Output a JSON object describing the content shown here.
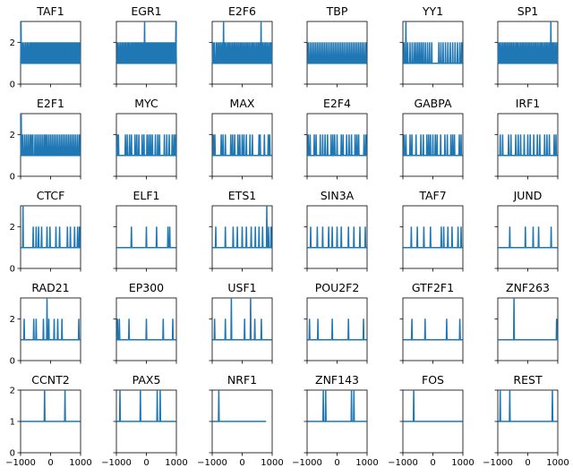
{
  "figure": {
    "line_color": "#1f77b4",
    "axis_color": "#000000",
    "background": "#ffffff",
    "layout": "5 rows x 6 columns of small line plots, shared x axis, shared y axis per row"
  },
  "chart_data": [
    {
      "type": "line",
      "title": "TAF1",
      "xlim": [
        -1000,
        1000
      ],
      "ylim": [
        0,
        3
      ],
      "baseline": 1,
      "pattern": "dense",
      "x": [
        -985,
        -930,
        -880,
        -830,
        -780,
        -730,
        -680,
        -640,
        -600,
        -555,
        -510,
        -470,
        -430,
        -390,
        -350,
        -310,
        -270,
        -230,
        -190,
        -150,
        -110,
        -70,
        -30,
        10,
        50,
        90,
        130,
        170,
        210,
        250,
        290,
        330,
        370,
        410,
        450,
        490,
        530,
        570,
        610,
        650,
        690,
        730,
        770,
        810,
        850,
        890,
        930,
        970
      ],
      "y": [
        3,
        2,
        2,
        2,
        2,
        2,
        2,
        2,
        2,
        2,
        2,
        2,
        2,
        2,
        2,
        2,
        2,
        2,
        2,
        2,
        2,
        2,
        2,
        2,
        2,
        2,
        2,
        2,
        2,
        2,
        2,
        2,
        2,
        2,
        2,
        2,
        2,
        2,
        2,
        2,
        2,
        2,
        2,
        2,
        2,
        2,
        2,
        2
      ]
    },
    {
      "type": "line",
      "title": "EGR1",
      "xlim": [
        -1000,
        1000
      ],
      "ylim": [
        0,
        3
      ],
      "baseline": 1,
      "pattern": "dense",
      "x": [
        -960,
        -910,
        -860,
        -810,
        -770,
        -720,
        -680,
        -630,
        -590,
        -550,
        -500,
        -460,
        -420,
        -380,
        -340,
        -300,
        -260,
        -220,
        -180,
        -140,
        -100,
        -60,
        -20,
        20,
        60,
        100,
        140,
        180,
        220,
        260,
        300,
        340,
        380,
        420,
        460,
        500,
        540,
        580,
        620,
        660,
        700,
        740,
        780,
        820,
        860,
        900,
        940,
        985
      ],
      "y": [
        2,
        2,
        2,
        2,
        2,
        2,
        2,
        2,
        2,
        2,
        2,
        2,
        2,
        2,
        2,
        2,
        2,
        2,
        2,
        2,
        2,
        3,
        2,
        2,
        2,
        2,
        2,
        2,
        2,
        2,
        2,
        2,
        2,
        2,
        2,
        2,
        2,
        2,
        2,
        2,
        2,
        2,
        2,
        2,
        2,
        2,
        2,
        3
      ]
    },
    {
      "type": "line",
      "title": "E2F6",
      "xlim": [
        -1000,
        1000
      ],
      "ylim": [
        0,
        3
      ],
      "baseline": 1,
      "pattern": "dense",
      "x": [
        -980,
        -930,
        -870,
        -820,
        -770,
        -720,
        -670,
        -620,
        -570,
        -520,
        -470,
        -420,
        -370,
        -320,
        -270,
        -220,
        -170,
        -120,
        -70,
        -20,
        30,
        80,
        130,
        180,
        230,
        280,
        330,
        380,
        430,
        480,
        530,
        580,
        630,
        680,
        730,
        780,
        830,
        880,
        930,
        975
      ],
      "y": [
        2,
        2,
        2,
        2,
        2,
        2,
        2,
        3,
        2,
        2,
        2,
        2,
        2,
        2,
        2,
        2,
        2,
        2,
        2,
        2,
        2,
        2,
        2,
        2,
        2,
        2,
        2,
        2,
        2,
        2,
        2,
        2,
        3,
        2,
        2,
        2,
        2,
        2,
        2,
        2
      ]
    },
    {
      "type": "line",
      "title": "TBP",
      "xlim": [
        -1000,
        1000
      ],
      "ylim": [
        0,
        3
      ],
      "baseline": 1,
      "pattern": "dense",
      "x": [
        -960,
        -900,
        -840,
        -780,
        -720,
        -660,
        -600,
        -540,
        -480,
        -420,
        -360,
        -300,
        -240,
        -180,
        -120,
        -60,
        0,
        60,
        120,
        180,
        240,
        300,
        360,
        420,
        480,
        540,
        600,
        660,
        720,
        780,
        840,
        900,
        960
      ],
      "y": [
        2,
        2,
        2,
        2,
        2,
        2,
        2,
        2,
        2,
        2,
        2,
        2,
        2,
        2,
        2,
        2,
        2,
        2,
        2,
        2,
        2,
        2,
        2,
        2,
        2,
        2,
        2,
        2,
        2,
        2,
        2,
        2,
        2
      ]
    },
    {
      "type": "line",
      "title": "YY1",
      "xlim": [
        -1000,
        1000
      ],
      "ylim": [
        0,
        3
      ],
      "baseline": 1,
      "pattern": "sparse",
      "x": [
        -960,
        -900,
        -840,
        -760,
        -690,
        -620,
        -560,
        -500,
        -440,
        -380,
        -320,
        -250,
        -180,
        -110,
        -40,
        200,
        270,
        340,
        420,
        500,
        580,
        660,
        740,
        820,
        900,
        960
      ],
      "y": [
        2,
        3,
        2,
        2,
        2,
        2,
        2,
        2,
        2,
        2,
        2,
        2,
        2,
        2,
        2,
        2,
        2,
        2,
        2,
        2,
        2,
        2,
        2,
        2,
        2,
        2
      ]
    },
    {
      "type": "line",
      "title": "SP1",
      "xlim": [
        -1000,
        1000
      ],
      "ylim": [
        0,
        3
      ],
      "baseline": 1,
      "pattern": "dense",
      "x": [
        -980,
        -930,
        -880,
        -830,
        -780,
        -730,
        -680,
        -630,
        -580,
        -530,
        -480,
        -430,
        -380,
        -330,
        -280,
        -230,
        -180,
        -130,
        -80,
        -30,
        20,
        70,
        120,
        170,
        220,
        270,
        320,
        370,
        420,
        470,
        520,
        570,
        620,
        670,
        720,
        770,
        820,
        870,
        920,
        970
      ],
      "y": [
        2,
        2,
        2,
        2,
        2,
        2,
        2,
        2,
        2,
        2,
        2,
        2,
        2,
        2,
        2,
        2,
        2,
        2,
        2,
        2,
        2,
        2,
        2,
        2,
        2,
        2,
        2,
        2,
        2,
        2,
        2,
        2,
        2,
        2,
        2,
        3,
        2,
        2,
        2,
        2
      ]
    },
    {
      "type": "line",
      "title": "E2F1",
      "xlim": [
        -1000,
        1000
      ],
      "ylim": [
        0,
        3
      ],
      "baseline": 1,
      "x": [
        -980,
        -930,
        -870,
        -810,
        -750,
        -690,
        -640,
        -590,
        -520,
        -460,
        -400,
        -340,
        -280,
        -220,
        -170,
        -120,
        -60,
        0,
        60,
        120,
        180,
        240,
        300,
        360,
        420,
        480,
        540,
        600,
        660,
        720,
        780,
        840,
        900,
        960
      ],
      "y": [
        3,
        2,
        2,
        2,
        2,
        2,
        2,
        2,
        2,
        2,
        2,
        2,
        2,
        2,
        2,
        2,
        2,
        2,
        2,
        2,
        2,
        2,
        2,
        2,
        2,
        2,
        2,
        2,
        2,
        2,
        2,
        2,
        2,
        2
      ]
    },
    {
      "type": "line",
      "title": "MYC",
      "xlim": [
        -1000,
        1000
      ],
      "ylim": [
        0,
        3
      ],
      "baseline": 1,
      "x": [
        -970,
        -930,
        -700,
        -640,
        -560,
        -500,
        -380,
        -320,
        -250,
        -140,
        -80,
        20,
        80,
        140,
        200,
        300,
        380,
        440,
        600,
        680,
        760,
        860,
        920,
        970
      ],
      "y": [
        2,
        2,
        2,
        2,
        2,
        2,
        2,
        2,
        2,
        2,
        2,
        2,
        2,
        2,
        2,
        2,
        2,
        2,
        2,
        2,
        2,
        2,
        2,
        2
      ]
    },
    {
      "type": "line",
      "title": "MAX",
      "xlim": [
        -1000,
        1000
      ],
      "ylim": [
        0,
        3
      ],
      "baseline": 1,
      "x": [
        -960,
        -910,
        -700,
        -640,
        -560,
        -380,
        -320,
        -250,
        -140,
        -80,
        0,
        60,
        140,
        260,
        340,
        560,
        600,
        740,
        870,
        920
      ],
      "y": [
        2,
        2,
        2,
        2,
        2,
        2,
        2,
        2,
        2,
        2,
        2,
        2,
        2,
        2,
        2,
        2,
        2,
        2,
        2,
        2
      ]
    },
    {
      "type": "line",
      "title": "E2F4",
      "xlim": [
        -1000,
        1000
      ],
      "ylim": [
        0,
        3
      ],
      "baseline": 1,
      "x": [
        -960,
        -900,
        -760,
        -700,
        -560,
        -480,
        -400,
        -320,
        -200,
        -140,
        -80,
        0,
        140,
        200,
        320,
        400,
        480,
        600,
        660,
        720,
        900,
        960
      ],
      "y": [
        2,
        2,
        2,
        2,
        2,
        2,
        2,
        2,
        2,
        2,
        2,
        2,
        2,
        2,
        2,
        2,
        2,
        2,
        2,
        2,
        2,
        2
      ]
    },
    {
      "type": "line",
      "title": "GABPA",
      "xlim": [
        -1000,
        1000
      ],
      "ylim": [
        0,
        3
      ],
      "baseline": 1,
      "x": [
        -960,
        -900,
        -760,
        -700,
        -560,
        -400,
        -320,
        -200,
        -140,
        -80,
        0,
        80,
        140,
        260,
        400,
        480,
        600,
        660,
        720,
        880,
        940
      ],
      "y": [
        2,
        2,
        2,
        2,
        2,
        2,
        2,
        2,
        2,
        2,
        2,
        2,
        2,
        2,
        2,
        2,
        2,
        2,
        2,
        2,
        2
      ]
    },
    {
      "type": "line",
      "title": "IRF1",
      "xlim": [
        -1000,
        1000
      ],
      "ylim": [
        0,
        3
      ],
      "baseline": 1,
      "x": [
        -920,
        -840,
        -640,
        -560,
        -400,
        -320,
        -240,
        -120,
        0,
        80,
        200,
        320,
        400,
        560,
        640,
        720,
        880,
        940
      ],
      "y": [
        2,
        2,
        2,
        2,
        2,
        2,
        2,
        2,
        2,
        2,
        2,
        2,
        2,
        2,
        2,
        2,
        2,
        2
      ]
    },
    {
      "type": "line",
      "title": "CTCF",
      "xlim": [
        -1000,
        1000
      ],
      "ylim": [
        0,
        3
      ],
      "baseline": 1,
      "x": [
        -920,
        -580,
        -480,
        -400,
        -300,
        -120,
        -20,
        180,
        300,
        560,
        660,
        800,
        900,
        960
      ],
      "y": [
        3,
        2,
        2,
        2,
        2,
        2,
        2,
        2,
        2,
        2,
        2,
        2,
        2,
        2
      ]
    },
    {
      "type": "line",
      "title": "ELF1",
      "xlim": [
        -1000,
        1000
      ],
      "ylim": [
        0,
        3
      ],
      "baseline": 1,
      "x": [
        -500,
        0,
        340,
        720,
        780
      ],
      "y": [
        2,
        2,
        2,
        2,
        2
      ]
    },
    {
      "type": "line",
      "title": "ETS1",
      "xlim": [
        -1000,
        1000
      ],
      "ylim": [
        0,
        3
      ],
      "baseline": 1,
      "x": [
        -880,
        -560,
        -300,
        -160,
        0,
        140,
        300,
        440,
        560,
        680,
        820,
        880,
        960
      ],
      "y": [
        2,
        2,
        2,
        2,
        2,
        2,
        2,
        2,
        2,
        2,
        3,
        2,
        2
      ]
    },
    {
      "type": "line",
      "title": "SIN3A",
      "xlim": [
        -1000,
        1000
      ],
      "ylim": [
        0,
        3
      ],
      "baseline": 1,
      "x": [
        -880,
        -660,
        -480,
        -280,
        -160,
        0,
        140,
        380,
        560,
        760,
        940
      ],
      "y": [
        2,
        2,
        2,
        2,
        2,
        2,
        2,
        2,
        2,
        2,
        2
      ]
    },
    {
      "type": "line",
      "title": "TAF7",
      "xlim": [
        -1000,
        1000
      ],
      "ylim": [
        0,
        3
      ],
      "baseline": 1,
      "x": [
        -720,
        -520,
        -300,
        -80,
        280,
        360,
        500,
        640,
        840,
        940
      ],
      "y": [
        2,
        2,
        2,
        2,
        2,
        2,
        2,
        2,
        2,
        2
      ]
    },
    {
      "type": "line",
      "title": "JUND",
      "xlim": [
        -1000,
        1000
      ],
      "ylim": [
        0,
        3
      ],
      "baseline": 1,
      "x": [
        -600,
        -80,
        180,
        360,
        780
      ],
      "y": [
        2,
        2,
        2,
        2,
        2
      ]
    },
    {
      "type": "line",
      "title": "RAD21",
      "xlim": [
        -1000,
        1000
      ],
      "ylim": [
        0,
        3
      ],
      "baseline": 1,
      "x": [
        -880,
        -560,
        -480,
        -240,
        -120,
        -60,
        120,
        240,
        380,
        940
      ],
      "y": [
        2,
        2,
        2,
        2,
        3,
        2,
        2,
        2,
        2,
        2
      ]
    },
    {
      "type": "line",
      "title": "EP300",
      "xlim": [
        -1000,
        1000
      ],
      "ylim": [
        0,
        3
      ],
      "baseline": 1,
      "x": [
        -960,
        -900,
        -580,
        0,
        560,
        880
      ],
      "y": [
        2,
        2,
        2,
        2,
        2,
        2
      ]
    },
    {
      "type": "line",
      "title": "USF1",
      "xlim": [
        -1000,
        1000
      ],
      "ylim": [
        0,
        3
      ],
      "baseline": 1,
      "x": [
        -920,
        -560,
        -360,
        80,
        280,
        420,
        640
      ],
      "y": [
        2,
        2,
        3,
        2,
        3,
        2,
        2
      ]
    },
    {
      "type": "line",
      "title": "POU2F2",
      "xlim": [
        -1000,
        1000
      ],
      "ylim": [
        0,
        3
      ],
      "baseline": 1,
      "x": [
        -920,
        -640,
        -160,
        380,
        880
      ],
      "y": [
        2,
        2,
        2,
        2,
        2
      ]
    },
    {
      "type": "line",
      "title": "GTF2F1",
      "xlim": [
        -1000,
        1000
      ],
      "ylim": [
        0,
        3
      ],
      "baseline": 1,
      "x": [
        -700,
        -260,
        460,
        900
      ],
      "y": [
        2,
        2,
        2,
        2
      ]
    },
    {
      "type": "line",
      "title": "ZNF263",
      "xlim": [
        -1000,
        1000
      ],
      "ylim": [
        0,
        3
      ],
      "baseline": 1,
      "x": [
        -460,
        960
      ],
      "y": [
        3,
        2
      ]
    },
    {
      "type": "line",
      "title": "CCNT2",
      "xlim": [
        -1000,
        1000
      ],
      "ylim": [
        0,
        2
      ],
      "baseline": 1,
      "x": [
        -200,
        480
      ],
      "y": [
        2,
        2
      ]
    },
    {
      "type": "line",
      "title": "PAX5",
      "xlim": [
        -1000,
        1000
      ],
      "ylim": [
        0,
        2
      ],
      "baseline": 1,
      "x": [
        -880,
        -200,
        360,
        460
      ],
      "y": [
        2,
        2,
        2,
        2
      ]
    },
    {
      "type": "line",
      "title": "NRF1",
      "xlim": [
        -1000,
        1000
      ],
      "ylim": [
        0,
        2
      ],
      "baseline": 1,
      "x": [
        -780
      ],
      "y": [
        2
      ],
      "x_end": 800
    },
    {
      "type": "line",
      "title": "ZNF143",
      "xlim": [
        -1000,
        1000
      ],
      "ylim": [
        0,
        2
      ],
      "baseline": 1,
      "x": [
        -460,
        -380,
        480,
        560
      ],
      "y": [
        2,
        2,
        2,
        2
      ]
    },
    {
      "type": "line",
      "title": "FOS",
      "xlim": [
        -1000,
        1000
      ],
      "ylim": [
        0,
        2
      ],
      "baseline": 1,
      "x": [
        -640
      ],
      "y": [
        2
      ]
    },
    {
      "type": "line",
      "title": "REST",
      "xlim": [
        -1000,
        1000
      ],
      "ylim": [
        0,
        2
      ],
      "baseline": 1,
      "x": [
        -920,
        -600,
        820
      ],
      "y": [
        2,
        2,
        2
      ]
    }
  ],
  "axes": {
    "xticks": [
      "−1000",
      "0",
      "1000"
    ],
    "xtick_values": [
      -1000,
      0,
      1000
    ],
    "yticks_rows_1_4": [
      "0",
      "2"
    ],
    "ytick_values_rows_1_4": [
      0,
      2
    ],
    "yticks_row_5": [
      "0",
      "1",
      "2"
    ],
    "ytick_values_row_5": [
      0,
      1,
      2
    ]
  }
}
